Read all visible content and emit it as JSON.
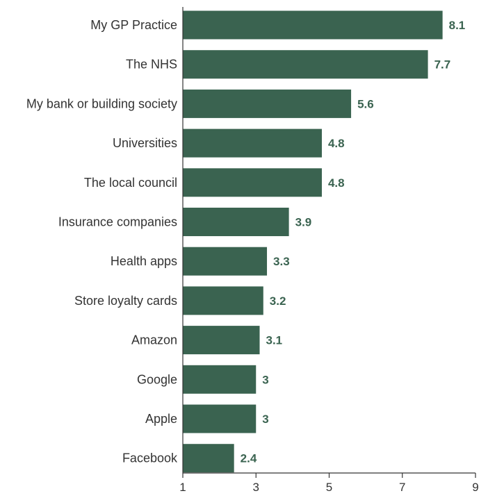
{
  "chart_data": {
    "type": "bar",
    "orientation": "horizontal",
    "title": "",
    "xlabel": "",
    "ylabel": "",
    "categories": [
      "My GP Practice",
      "The NHS",
      "My bank or building society",
      "Universities",
      "The local council",
      "Insurance companies",
      "Health apps",
      "Store loyalty cards",
      "Amazon",
      "Google",
      "Apple",
      "Facebook"
    ],
    "values": [
      8.1,
      7.7,
      5.6,
      4.8,
      4.8,
      3.9,
      3.3,
      3.2,
      3.1,
      3,
      3,
      2.4
    ],
    "value_labels": [
      "8.1",
      "7.7",
      "5.6",
      "4.8",
      "4.8",
      "3.9",
      "3.3",
      "3.2",
      "3.1",
      "3",
      "3",
      "2.4"
    ],
    "xlim": [
      1,
      9
    ],
    "xticks": [
      1,
      3,
      5,
      7,
      9
    ],
    "xtick_labels": [
      "1",
      "3",
      "5",
      "7",
      "9"
    ],
    "grid": false,
    "legend": "none",
    "colors": {
      "bar": "#3a6350",
      "value_label": "#3a6350",
      "axis": "#333333",
      "text": "#333333"
    }
  }
}
